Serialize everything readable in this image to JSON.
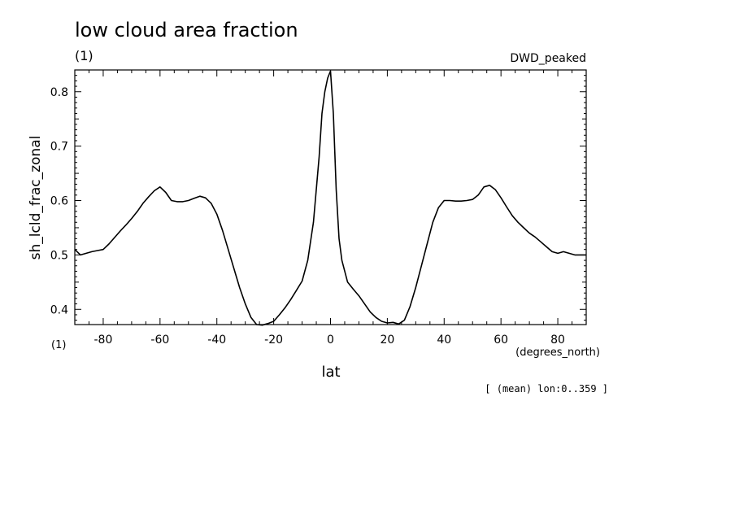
{
  "chart_data": {
    "type": "line",
    "title": "low cloud area fraction",
    "units": "(1)",
    "model": "DWD_peaked",
    "ylabel": "sh_lcld_frac_zonal",
    "xlabel": "lat",
    "x_units": "(degrees_north)",
    "y_units": "(1)",
    "note": "[ (mean) lon:0..359 ]",
    "xlim": [
      -90,
      90
    ],
    "ylim": [
      0.372,
      0.84
    ],
    "x_ticks": [
      -80,
      -60,
      -40,
      -20,
      0,
      20,
      40,
      60,
      80
    ],
    "x_tick_labels": [
      "-80",
      "-60",
      "-40",
      "-20",
      "0",
      "20",
      "40",
      "60",
      "80"
    ],
    "y_ticks": [
      0.4,
      0.5,
      0.6,
      0.7,
      0.8
    ],
    "y_tick_labels": [
      "0.4",
      "0.5",
      "0.6",
      "0.7",
      "0.8"
    ],
    "grid": false,
    "series": [
      {
        "x": [
          -90,
          -88,
          -86,
          -84,
          -82,
          -80,
          -78,
          -76,
          -74,
          -72,
          -70,
          -68,
          -66,
          -64,
          -62,
          -60,
          -58,
          -56,
          -54,
          -52,
          -50,
          -48,
          -46,
          -44,
          -42,
          -40,
          -38,
          -36,
          -34,
          -32,
          -30,
          -28,
          -26,
          -24,
          -22,
          -20,
          -18,
          -16,
          -14,
          -12,
          -10,
          -8,
          -6,
          -4,
          -3,
          -2,
          -1,
          0,
          1,
          2,
          3,
          4,
          6,
          8,
          10,
          12,
          14,
          16,
          18,
          20,
          22,
          24,
          26,
          28,
          30,
          32,
          34,
          36,
          38,
          40,
          42,
          44,
          46,
          48,
          50,
          52,
          54,
          56,
          58,
          60,
          62,
          64,
          66,
          68,
          70,
          72,
          74,
          76,
          78,
          80,
          82,
          84,
          86,
          88,
          90
        ],
        "values": [
          0.51,
          0.5,
          0.503,
          0.506,
          0.508,
          0.51,
          0.52,
          0.532,
          0.544,
          0.555,
          0.567,
          0.58,
          0.595,
          0.607,
          0.618,
          0.625,
          0.615,
          0.6,
          0.598,
          0.598,
          0.6,
          0.604,
          0.608,
          0.605,
          0.595,
          0.575,
          0.545,
          0.51,
          0.475,
          0.44,
          0.41,
          0.385,
          0.372,
          0.371,
          0.374,
          0.378,
          0.39,
          0.403,
          0.418,
          0.435,
          0.452,
          0.49,
          0.56,
          0.68,
          0.76,
          0.8,
          0.825,
          0.838,
          0.76,
          0.62,
          0.53,
          0.49,
          0.45,
          0.437,
          0.425,
          0.41,
          0.395,
          0.385,
          0.378,
          0.375,
          0.376,
          0.373,
          0.38,
          0.405,
          0.44,
          0.48,
          0.52,
          0.56,
          0.587,
          0.6,
          0.6,
          0.599,
          0.599,
          0.6,
          0.602,
          0.61,
          0.625,
          0.628,
          0.62,
          0.605,
          0.588,
          0.572,
          0.56,
          0.55,
          0.54,
          0.533,
          0.524,
          0.515,
          0.506,
          0.503,
          0.506,
          0.503,
          0.5,
          0.5,
          0.5
        ]
      }
    ]
  }
}
